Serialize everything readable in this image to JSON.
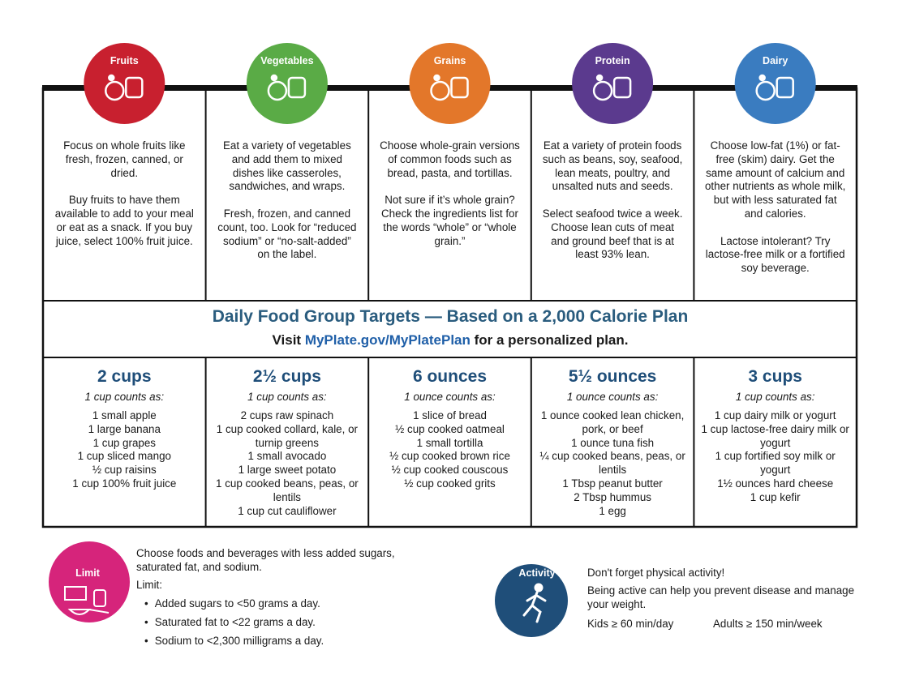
{
  "groups": [
    {
      "name": "Fruits",
      "color": "#c8202f",
      "description": [
        "Focus on whole fruits like fresh, frozen, canned, or dried.",
        "Buy fruits to have them available to add to your meal or eat as a snack. If you buy juice, select 100% fruit juice."
      ],
      "amount": "2 cups",
      "counts_as": "1 cup counts as:",
      "items": [
        "1 small apple",
        "1 large banana",
        "1 cup grapes",
        "1 cup sliced mango",
        "½ cup raisins",
        "1 cup 100% fruit juice"
      ]
    },
    {
      "name": "Vegetables",
      "color": "#5aab46",
      "description": [
        "Eat a variety of vegetables and add them to mixed dishes like casseroles, sandwiches, and wraps.",
        "Fresh, frozen, and canned count, too. Look for “reduced sodium” or “no-salt-added” on the label."
      ],
      "amount": "2½ cups",
      "counts_as": "1 cup counts as:",
      "items": [
        "2 cups raw spinach",
        "1 cup cooked collard, kale, or turnip greens",
        "1 small avocado",
        "1 large sweet potato",
        "1 cup cooked beans, peas, or lentils",
        "1 cup cut cauliflower"
      ]
    },
    {
      "name": "Grains",
      "color": "#e3772a",
      "description": [
        "Choose whole-grain versions of common foods such as bread, pasta, and tortillas.",
        "Not sure if it’s whole grain? Check the ingredients list for the words “whole” or “whole grain.”"
      ],
      "amount": "6 ounces",
      "counts_as": "1 ounce counts as:",
      "items": [
        "1 slice of bread",
        "½ cup cooked oatmeal",
        "1 small tortilla",
        "½ cup cooked brown rice",
        "½ cup cooked couscous",
        "½ cup cooked grits"
      ]
    },
    {
      "name": "Protein",
      "color": "#5b3a8e",
      "description": [
        "Eat a variety of protein foods such as beans, soy, seafood, lean meats, poultry, and unsalted nuts and seeds.",
        "Select seafood twice a week. Choose lean cuts of meat and ground beef that is at least 93% lean."
      ],
      "amount": "5½ ounces",
      "counts_as": "1 ounce counts as:",
      "items": [
        "1 ounce cooked lean chicken, pork, or beef",
        "1 ounce tuna fish",
        "¼ cup cooked beans, peas, or lentils",
        "1 Tbsp peanut butter",
        "2 Tbsp hummus",
        "1 egg"
      ]
    },
    {
      "name": "Dairy",
      "color": "#3a7cc0",
      "description": [
        "Choose low-fat (1%) or fat-free (skim) dairy. Get the same amount of calcium and other nutrients as whole milk, but with less saturated fat and calories.",
        "Lactose intolerant? Try lactose-free milk or a fortified soy beverage."
      ],
      "amount": "3 cups",
      "counts_as": "1 cup counts as:",
      "items": [
        "1 cup dairy milk or yogurt",
        "1 cup lactose-free dairy milk or yogurt",
        "1 cup fortified soy milk or yogurt",
        "1½ ounces hard cheese",
        "1 cup kefir"
      ]
    }
  ],
  "band": {
    "title": "Daily Food Group Targets — Based on a 2,000 Calorie Plan",
    "visit": "Visit",
    "link_bold": "MyPlate",
    "link_rest": ".gov/MyPlatePlan",
    "suffix": "for a personalized plan."
  },
  "limit": {
    "label": "Limit",
    "color": "#d6247b",
    "intro": "Choose foods and beverages with less added sugars, saturated fat, and sodium.",
    "heading": "Limit:",
    "bullets": [
      "Added sugars to <50 grams a day.",
      "Saturated fat to <22 grams a day.",
      "Sodium to <2,300 milligrams a day."
    ]
  },
  "activity": {
    "label": "Activity",
    "color": "#1f4e79",
    "heading": "Don't forget physical activity!",
    "text": "Being active can help you prevent disease and manage your weight.",
    "kids": "Kids ≥ 60 min/day",
    "adults": "Adults ≥ 150 min/week"
  }
}
